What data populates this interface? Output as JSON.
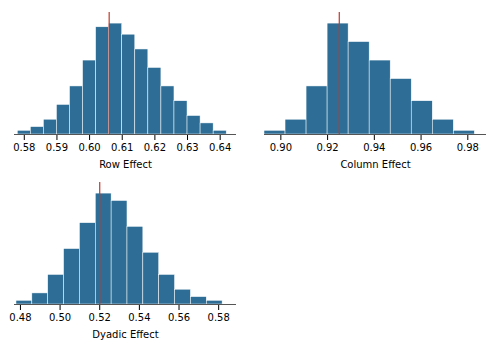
{
  "chart_data": [
    {
      "type": "histogram",
      "xlabel": "Row Effect",
      "color": "#2e6e96",
      "bins": [
        0.578,
        0.582,
        0.586,
        0.59,
        0.594,
        0.598,
        0.602,
        0.606,
        0.61,
        0.614,
        0.618,
        0.622,
        0.626,
        0.63,
        0.634,
        0.638,
        0.642
      ],
      "values": [
        1,
        2,
        4,
        8,
        13,
        20,
        29,
        30,
        27,
        23,
        18,
        13,
        9,
        5,
        3,
        1
      ],
      "xlim": [
        0.577,
        0.645
      ],
      "xticks": [
        0.58,
        0.59,
        {
          "value": 0.6,
          "label": "0.60"
        },
        0.61,
        0.62,
        0.63,
        0.64
      ],
      "ylim": [
        0,
        33
      ],
      "tick_labels": "x",
      "vline": {
        "value": 0.606,
        "color": "#c0392b"
      }
    },
    {
      "type": "histogram",
      "xlabel": "Column Effect",
      "color": "#2e6e96",
      "bins": [
        0.893,
        0.902,
        0.911,
        0.92,
        0.929,
        0.938,
        0.947,
        0.956,
        0.965,
        0.974,
        0.983
      ],
      "values": [
        1,
        4,
        13,
        30,
        25,
        20,
        15,
        9,
        4,
        1
      ],
      "xlim": [
        0.893,
        0.988
      ],
      "xticks": [
        {
          "value": 0.9,
          "label": "0.90"
        },
        0.92,
        0.94,
        0.96,
        0.98
      ],
      "ylim": [
        0,
        33
      ],
      "tick_labels": "x",
      "vline": {
        "value": 0.925,
        "color": "#c0392b"
      }
    },
    {
      "type": "histogram",
      "xlabel": "Dyadic Effect",
      "color": "#2e6e96",
      "bins": [
        0.478,
        0.486,
        0.494,
        0.502,
        0.51,
        0.518,
        0.526,
        0.534,
        0.542,
        0.55,
        0.558,
        0.566,
        0.574,
        0.582
      ],
      "values": [
        1,
        3,
        8,
        15,
        22,
        30,
        28,
        21,
        14,
        8,
        4,
        2,
        1
      ],
      "xlim": [
        0.477,
        0.589
      ],
      "xticks": [
        0.48,
        {
          "value": 0.5,
          "label": "0.50"
        },
        0.52,
        0.54,
        0.56,
        0.58
      ],
      "ylim": [
        0,
        33
      ],
      "tick_labels": "x",
      "vline": {
        "value": 0.52,
        "color": "#c0392b"
      }
    }
  ]
}
